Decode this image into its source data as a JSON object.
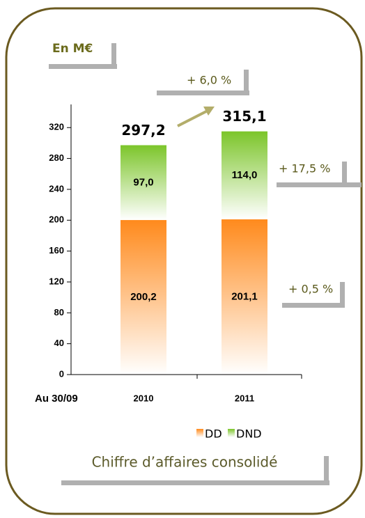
{
  "chart_data": {
    "type": "stacked_bar",
    "title": "Chiffre d’affaires consolidé",
    "unit_label": "En M€",
    "x_label": "Au 30/09",
    "categories": [
      "2010",
      "2011"
    ],
    "series": [
      {
        "name": "DD",
        "color": "#ff8a1c",
        "values": [
          200.2,
          201.1
        ],
        "value_labels": [
          "200,2",
          "201,1"
        ]
      },
      {
        "name": "DND",
        "color": "#7cc52a",
        "values": [
          97.0,
          114.0
        ],
        "value_labels": [
          "97,0",
          "114,0"
        ]
      }
    ],
    "total_labels": [
      "297,2",
      "315,1"
    ],
    "annotations": {
      "total_growth": "+ 6,0 %",
      "dnd_growth": "+ 17,5 %",
      "dd_growth": "+ 0,5 %"
    },
    "ylim": [
      0,
      350
    ],
    "yticks": [
      0,
      40,
      80,
      120,
      160,
      200,
      240,
      280,
      320
    ],
    "legend": "bottom"
  }
}
